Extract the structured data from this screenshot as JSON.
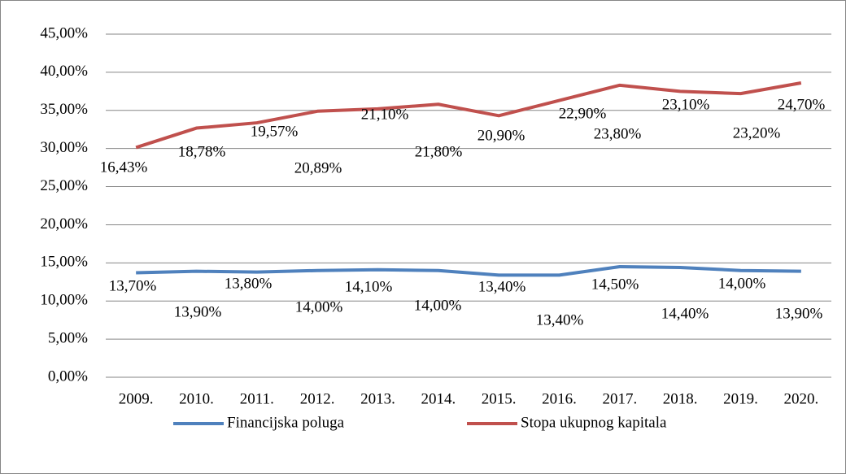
{
  "chart_data": {
    "type": "line",
    "stacked": true,
    "categories": [
      "2009.",
      "2010.",
      "2011.",
      "2012.",
      "2013.",
      "2014.",
      "2015.",
      "2016.",
      "2017.",
      "2018.",
      "2019.",
      "2020."
    ],
    "series": [
      {
        "name": "Financijska poluga",
        "color": "#4f81bd",
        "values": [
          13.7,
          13.9,
          13.8,
          14.0,
          14.1,
          14.0,
          13.4,
          13.4,
          14.5,
          14.4,
          14.0,
          13.9
        ],
        "value_labels": [
          "13,70%",
          "13,90%",
          "13,80%",
          "14,00%",
          "14,10%",
          "14,00%",
          "13,40%",
          "13,40%",
          "14,50%",
          "14,40%",
          "14,00%",
          "13,90%"
        ]
      },
      {
        "name": "Stopa ukupnog kapitala",
        "color": "#c0504d",
        "values": [
          16.43,
          18.78,
          19.57,
          20.89,
          21.1,
          21.8,
          20.9,
          22.9,
          23.8,
          23.1,
          23.2,
          24.7
        ],
        "value_labels": [
          "16,43%",
          "18,78%",
          "19,57%",
          "20,89%",
          "21,10%",
          "21,80%",
          "20,90%",
          "22,90%",
          "23,80%",
          "23,10%",
          "23,20%",
          "24,70%"
        ]
      }
    ],
    "ylim": [
      0,
      45
    ],
    "yticks": [
      {
        "value": 0,
        "label": "0,00%"
      },
      {
        "value": 5,
        "label": "5,00%"
      },
      {
        "value": 10,
        "label": "10,00%"
      },
      {
        "value": 15,
        "label": "15,00%"
      },
      {
        "value": 20,
        "label": "20,00%"
      },
      {
        "value": 25,
        "label": "25,00%"
      },
      {
        "value": 30,
        "label": "30,00%"
      },
      {
        "value": 35,
        "label": "35,00%"
      },
      {
        "value": 40,
        "label": "40,00%"
      },
      {
        "value": 45,
        "label": "45,00%"
      }
    ],
    "grid": true,
    "legend": "bottom"
  }
}
